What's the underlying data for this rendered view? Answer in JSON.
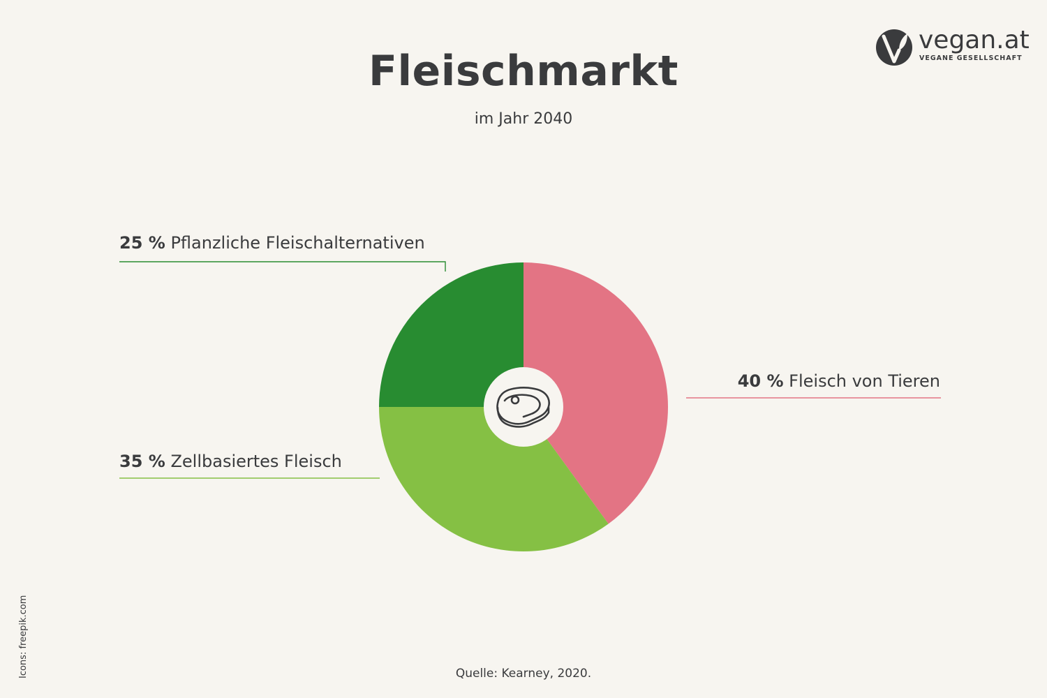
{
  "header": {
    "title": "Fleischmarkt",
    "subtitle": "im Jahr 2040"
  },
  "logo": {
    "name": "vegan.at",
    "tagline": "VEGANE GESELLSCHAFT",
    "icon": "vegan-leaf-v-icon"
  },
  "colors": {
    "tiere": "#e37484",
    "zellbasiert": "#85c044",
    "pflanzlich": "#288c31",
    "highlight": "#b9df9e",
    "text": "#3a3b3d"
  },
  "chart_data": {
    "type": "pie",
    "title": "Fleischmarkt",
    "subtitle": "im Jahr 2040",
    "unit": "%",
    "center_icon": "steak-icon",
    "slices": [
      {
        "label": "Fleisch von Tieren",
        "value": 40,
        "display": "40 %",
        "color": "#e37484"
      },
      {
        "label": "Zellbasiertes Fleisch",
        "value": 35,
        "display": "35 %",
        "color": "#85c044"
      },
      {
        "label": "Pflanzliche Fleischalternativen",
        "value": 25,
        "display": "25 %",
        "color": "#288c31"
      }
    ]
  },
  "footer": {
    "source": "Quelle: Kearney, 2020.",
    "icons_credit": "Icons: freepik.com"
  }
}
